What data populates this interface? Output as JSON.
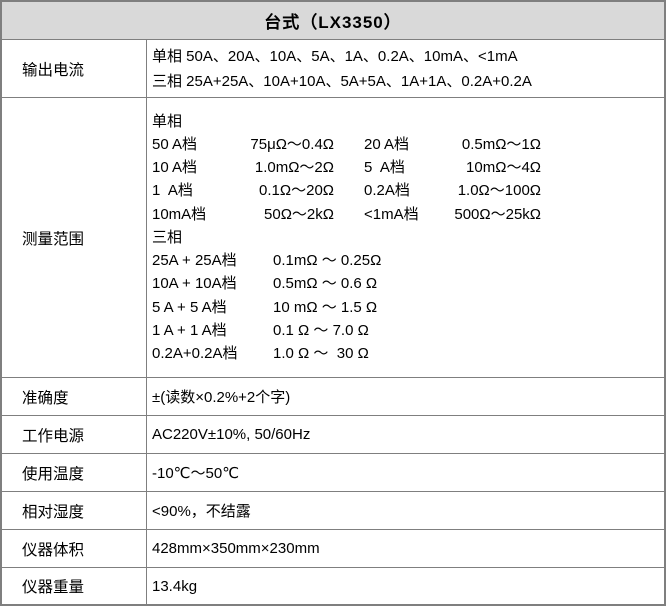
{
  "title": "台式（LX3350）",
  "output_current": {
    "label": "输出电流",
    "lines": [
      "单相 50A、20A、10A、5A、1A、0.2A、10mA、<1mA",
      "三相 25A+25A、10A+10A、5A+5A、1A+1A、0.2A+0.2A"
    ]
  },
  "measure_range": {
    "label": "测量范围",
    "single_phase_heading": "单相",
    "single_phase": [
      {
        "l1": "50 A档",
        "v1": "75μΩ～0.4Ω",
        "l2": "20 A档",
        "v2": "0.5mΩ～1Ω"
      },
      {
        "l1": "10 A档",
        "v1": "1.0mΩ～2Ω",
        "l2": "5  A档",
        "v2": "10mΩ～4Ω"
      },
      {
        "l1": "1  A档",
        "v1": "0.1Ω～20Ω",
        "l2": "0.2A档",
        "v2": "1.0Ω～100Ω"
      },
      {
        "l1": "10mA档",
        "v1": "50Ω～2kΩ",
        "l2": "<1mA档",
        "v2": "500Ω～25kΩ"
      }
    ],
    "three_phase_heading": "三相",
    "three_phase": [
      {
        "l": "25A + 25A档",
        "v": "0.1mΩ ～ 0.25Ω"
      },
      {
        "l": "10A + 10A档",
        "v": "0.5mΩ ～ 0.6 Ω"
      },
      {
        "l": "5 A + 5 A档",
        "v": "10 mΩ ～ 1.5 Ω"
      },
      {
        "l": "1 A + 1 A档",
        "v": "0.1 Ω ～ 7.0 Ω"
      },
      {
        "l": "0.2A+0.2A档",
        "v": "1.0 Ω ～  30 Ω"
      }
    ]
  },
  "simple_rows": [
    {
      "label": "准确度",
      "value": "±(读数×0.2%+2个字)"
    },
    {
      "label": "工作电源",
      "value": "AC220V±10%, 50/60Hz"
    },
    {
      "label": "使用温度",
      "value": "-10℃～50℃"
    },
    {
      "label": "相对湿度",
      "value": "<90%，不结露"
    },
    {
      "label": "仪器体积",
      "value": "428mm×350mm×230mm"
    },
    {
      "label": "仪器重量",
      "value": "13.4kg"
    }
  ],
  "colors": {
    "border": "#7f7f7f",
    "header_bg": "#d9d9d9",
    "text": "#000000",
    "background": "#ffffff"
  }
}
